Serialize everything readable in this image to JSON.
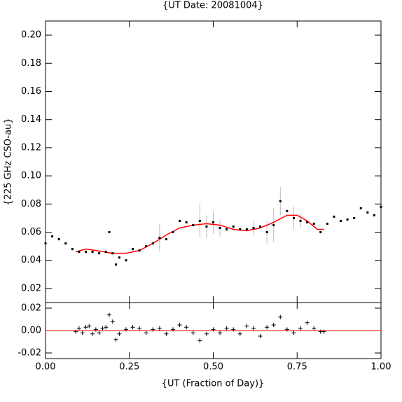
{
  "chart_data": [
    {
      "type": "scatter",
      "title": "{UT Date: 20081004}",
      "y_label": "{225 GHz CSO-au}",
      "ylim": [
        0.01,
        0.21
      ],
      "yticks": [
        0.02,
        0.04,
        0.06,
        0.08,
        {
          "value": 0.1,
          "label": "0.10"
        },
        0.12,
        0.14,
        0.16,
        0.18,
        {
          "value": 0.2,
          "label": "0.20"
        }
      ],
      "color": "#000000",
      "error_color": "#bbbbbb",
      "x": [
        0,
        0.02,
        0.04,
        0.06,
        0.08,
        0.1,
        0.12,
        0.14,
        0.16,
        0.18,
        0.19,
        0.2,
        0.21,
        0.22,
        0.24,
        0.26,
        0.28,
        0.3,
        0.32,
        0.34,
        0.36,
        0.38,
        0.4,
        0.42,
        0.44,
        0.46,
        0.48,
        0.5,
        0.52,
        0.54,
        0.56,
        0.58,
        0.6,
        0.62,
        0.64,
        0.66,
        0.68,
        0.7,
        0.72,
        0.74,
        0.76,
        0.78,
        0.8,
        0.82,
        0.84,
        0.86,
        0.88,
        0.9,
        0.92,
        0.94,
        0.96,
        0.98,
        1.0
      ],
      "values": [
        0.052,
        0.057,
        0.055,
        0.052,
        0.048,
        0.046,
        0.046,
        0.046,
        0.045,
        0.046,
        0.06,
        0.045,
        0.037,
        0.042,
        0.04,
        0.048,
        0.047,
        0.05,
        0.052,
        0.056,
        0.055,
        0.06,
        0.068,
        0.067,
        0.065,
        0.068,
        0.064,
        0.067,
        0.063,
        0.062,
        0.064,
        0.062,
        0.062,
        0.063,
        0.064,
        0.06,
        0.065,
        0.082,
        0.075,
        0.07,
        0.068,
        0.067,
        0.066,
        0.06,
        0.066,
        0.071,
        0.068,
        0.069,
        0.07,
        0.077,
        0.074,
        0.072,
        0.078
      ],
      "errors": [
        0.001,
        0.001,
        0.001,
        0.001,
        0.001,
        0.001,
        0.001,
        0.001,
        0.001,
        0.001,
        0.001,
        0.001,
        0.001,
        0.001,
        0.001,
        0.001,
        0.001,
        0.001,
        0.001,
        0.01,
        0.001,
        0.001,
        0.001,
        0.001,
        0.001,
        0.012,
        0.008,
        0.008,
        0.006,
        0.001,
        0.001,
        0.001,
        0.001,
        0.005,
        0.001,
        0.008,
        0.012,
        0.01,
        0.001,
        0.008,
        0.005,
        0.001,
        0.001,
        0.001,
        0,
        0,
        0,
        0,
        0,
        0,
        0,
        0,
        0
      ],
      "fit": {
        "color": "#ff0000",
        "x": [
          0.09,
          0.12,
          0.15,
          0.2,
          0.24,
          0.28,
          0.32,
          0.36,
          0.4,
          0.44,
          0.48,
          0.52,
          0.56,
          0.6,
          0.64,
          0.68,
          0.72,
          0.75,
          0.78,
          0.81,
          0.83
        ],
        "values": [
          0.046,
          0.048,
          0.047,
          0.045,
          0.045,
          0.047,
          0.052,
          0.058,
          0.063,
          0.065,
          0.066,
          0.065,
          0.062,
          0.061,
          0.063,
          0.067,
          0.072,
          0.072,
          0.068,
          0.062,
          0.062
        ]
      }
    },
    {
      "type": "scatter",
      "x_label": "{UT (Fraction of Day)}",
      "xlim": [
        0,
        1
      ],
      "xticks": [
        {
          "value": 0,
          "label": "0.00"
        },
        0.25,
        {
          "value": 0.5,
          "label": "0.50"
        },
        0.75,
        {
          "value": 1,
          "label": "1.00"
        }
      ],
      "ylim": [
        -0.025,
        0.025
      ],
      "yticks": [
        -0.02,
        {
          "value": 0,
          "label": "0.00"
        },
        0.02
      ],
      "color": "#000000",
      "hline": {
        "value": 0,
        "color": "#ff0000"
      },
      "x": [
        0.09,
        0.1,
        0.11,
        0.12,
        0.13,
        0.14,
        0.15,
        0.16,
        0.17,
        0.18,
        0.19,
        0.2,
        0.21,
        0.22,
        0.24,
        0.26,
        0.28,
        0.3,
        0.32,
        0.34,
        0.36,
        0.38,
        0.4,
        0.42,
        0.44,
        0.46,
        0.48,
        0.5,
        0.52,
        0.54,
        0.56,
        0.58,
        0.6,
        0.62,
        0.64,
        0.66,
        0.68,
        0.7,
        0.72,
        0.74,
        0.76,
        0.78,
        0.8,
        0.82,
        0.83
      ],
      "values": [
        -0.001,
        0.002,
        -0.002,
        0.003,
        0.004,
        -0.003,
        0.001,
        -0.002,
        0.002,
        0.003,
        0.014,
        0.008,
        -0.008,
        -0.003,
        0.001,
        0.003,
        0.002,
        -0.002,
        0.001,
        0.002,
        -0.003,
        0.001,
        0.005,
        0.003,
        -0.002,
        -0.009,
        -0.003,
        0.001,
        -0.002,
        0.002,
        0.001,
        -0.003,
        0.004,
        0.002,
        -0.005,
        0.003,
        0.005,
        0.012,
        0.001,
        -0.002,
        0.002,
        0.007,
        0.002,
        -0.001,
        -0.001
      ]
    }
  ]
}
